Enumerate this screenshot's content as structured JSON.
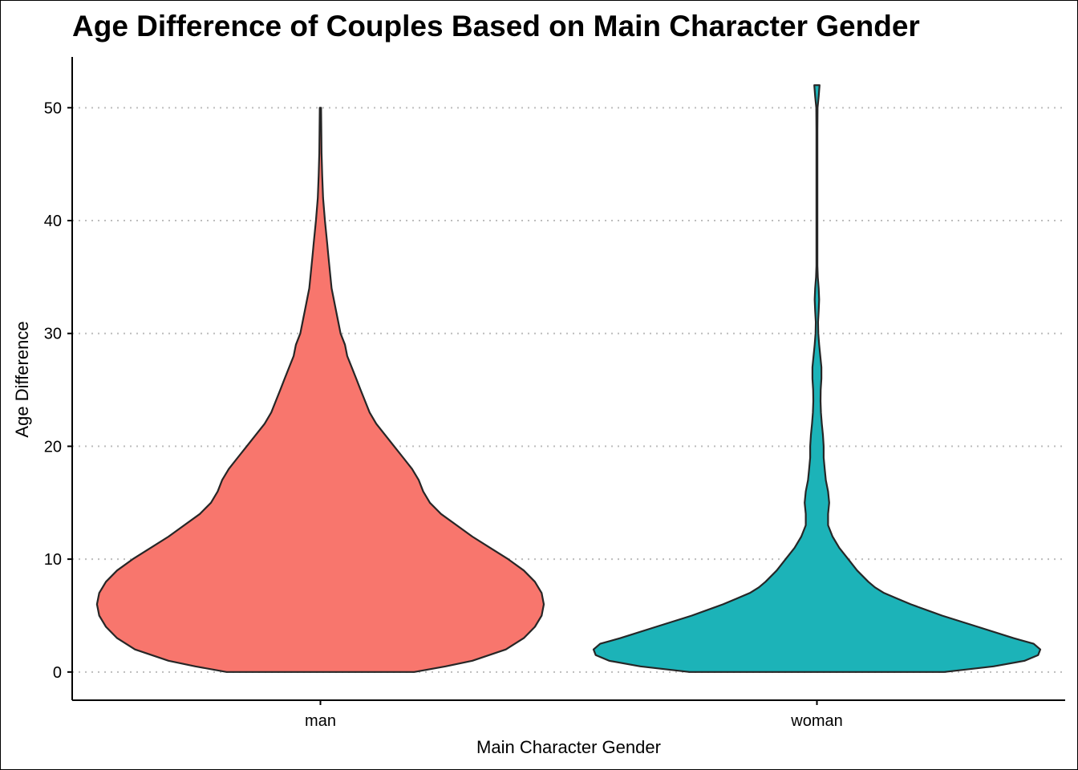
{
  "chart_data": {
    "type": "violin",
    "title": "Age Difference of Couples Based on Main Character Gender",
    "xlabel": "Main Character Gender",
    "ylabel": "Age Difference",
    "categories": [
      "man",
      "woman"
    ],
    "ylim": [
      -2.5,
      54.5
    ],
    "yticks": [
      0,
      10,
      20,
      30,
      40,
      50
    ],
    "grid": "horizontal dotted",
    "legend": "none",
    "series": [
      {
        "category": "man",
        "color": "#F8766D",
        "density_profile": [
          [
            0,
            0.42
          ],
          [
            0.5,
            0.56
          ],
          [
            1,
            0.68
          ],
          [
            2,
            0.83
          ],
          [
            3,
            0.91
          ],
          [
            4,
            0.96
          ],
          [
            5,
            0.99
          ],
          [
            6,
            1.0
          ],
          [
            7,
            0.99
          ],
          [
            8,
            0.96
          ],
          [
            9,
            0.91
          ],
          [
            10,
            0.84
          ],
          [
            11,
            0.76
          ],
          [
            12,
            0.68
          ],
          [
            13,
            0.61
          ],
          [
            14,
            0.54
          ],
          [
            15,
            0.49
          ],
          [
            16,
            0.46
          ],
          [
            17,
            0.44
          ],
          [
            18,
            0.41
          ],
          [
            19,
            0.37
          ],
          [
            20,
            0.33
          ],
          [
            21,
            0.29
          ],
          [
            22,
            0.25
          ],
          [
            23,
            0.22
          ],
          [
            24,
            0.2
          ],
          [
            25,
            0.18
          ],
          [
            26,
            0.16
          ],
          [
            27,
            0.14
          ],
          [
            28,
            0.12
          ],
          [
            29,
            0.11
          ],
          [
            30,
            0.09
          ],
          [
            31,
            0.08
          ],
          [
            32,
            0.07
          ],
          [
            33,
            0.06
          ],
          [
            34,
            0.05
          ],
          [
            35,
            0.045
          ],
          [
            36,
            0.04
          ],
          [
            37,
            0.035
          ],
          [
            38,
            0.03
          ],
          [
            39,
            0.025
          ],
          [
            40,
            0.02
          ],
          [
            42,
            0.012
          ],
          [
            44,
            0.008
          ],
          [
            46,
            0.005
          ],
          [
            48,
            0.004
          ],
          [
            50,
            0.003
          ]
        ]
      },
      {
        "category": "woman",
        "color": "#1CB3B8",
        "density_profile": [
          [
            0,
            0.57
          ],
          [
            0.5,
            0.79
          ],
          [
            1,
            0.93
          ],
          [
            1.5,
            0.99
          ],
          [
            2,
            1.0
          ],
          [
            2.5,
            0.97
          ],
          [
            3,
            0.88
          ],
          [
            4,
            0.72
          ],
          [
            5,
            0.56
          ],
          [
            6,
            0.42
          ],
          [
            6.5,
            0.36
          ],
          [
            7,
            0.3
          ],
          [
            7.5,
            0.26
          ],
          [
            8,
            0.23
          ],
          [
            9,
            0.18
          ],
          [
            10,
            0.14
          ],
          [
            11,
            0.1
          ],
          [
            12,
            0.07
          ],
          [
            13,
            0.05
          ],
          [
            14,
            0.05
          ],
          [
            15,
            0.055
          ],
          [
            16,
            0.05
          ],
          [
            17,
            0.04
          ],
          [
            18,
            0.035
          ],
          [
            19,
            0.03
          ],
          [
            20,
            0.03
          ],
          [
            21,
            0.027
          ],
          [
            22,
            0.022
          ],
          [
            23,
            0.018
          ],
          [
            24,
            0.016
          ],
          [
            25,
            0.017
          ],
          [
            26,
            0.02
          ],
          [
            27,
            0.02
          ],
          [
            28,
            0.015
          ],
          [
            29,
            0.01
          ],
          [
            30,
            0.006
          ],
          [
            31,
            0.005
          ],
          [
            32,
            0.008
          ],
          [
            33,
            0.01
          ],
          [
            34,
            0.008
          ],
          [
            35,
            0.004
          ],
          [
            36,
            0.002
          ],
          [
            38,
            0.002
          ],
          [
            40,
            0.002
          ],
          [
            44,
            0.002
          ],
          [
            48,
            0.002
          ],
          [
            50,
            0.003
          ],
          [
            51,
            0.008
          ],
          [
            52,
            0.012
          ]
        ]
      }
    ]
  }
}
